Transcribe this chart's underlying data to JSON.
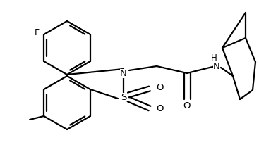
{
  "background_color": "#ffffff",
  "line_color": "#000000",
  "line_width": 1.6,
  "figsize": [
    3.67,
    2.16
  ],
  "dpi": 100,
  "xlim": [
    0,
    367
  ],
  "ylim": [
    0,
    216
  ]
}
